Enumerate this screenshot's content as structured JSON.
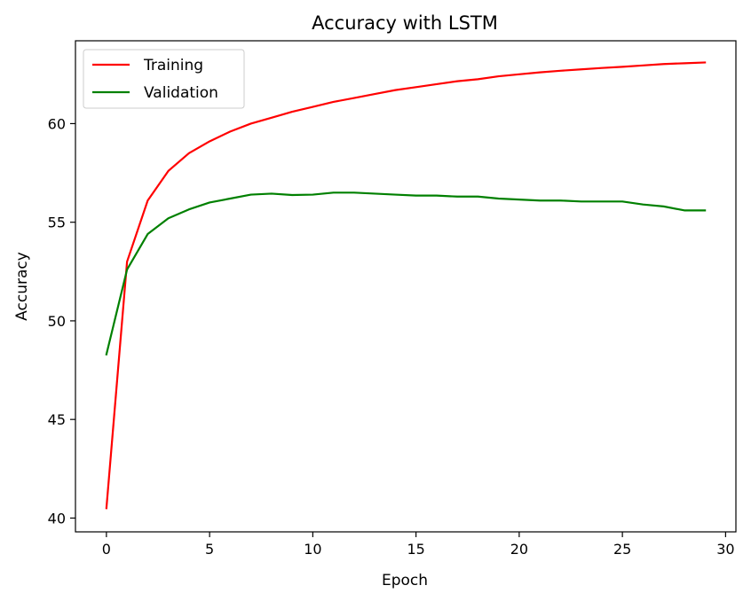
{
  "chart_data": {
    "type": "line",
    "title": "Accuracy with LSTM",
    "xlabel": "Epoch",
    "ylabel": "Accuracy",
    "xlim": [
      -1.5,
      30.5
    ],
    "ylim": [
      39.3,
      64.2
    ],
    "xticks": [
      0,
      5,
      10,
      15,
      20,
      25,
      30
    ],
    "yticks": [
      40,
      45,
      50,
      55,
      60
    ],
    "grid": false,
    "legend_position": "top-left",
    "x": [
      0,
      1,
      2,
      3,
      4,
      5,
      6,
      7,
      8,
      9,
      10,
      11,
      12,
      13,
      14,
      15,
      16,
      17,
      18,
      19,
      20,
      21,
      22,
      23,
      24,
      25,
      26,
      27,
      28,
      29
    ],
    "series": [
      {
        "name": "Training",
        "color": "#ff0000",
        "values": [
          40.5,
          53.0,
          56.1,
          57.6,
          58.5,
          59.1,
          59.6,
          60.0,
          60.3,
          60.6,
          60.85,
          61.1,
          61.3,
          61.5,
          61.7,
          61.85,
          62.0,
          62.15,
          62.25,
          62.4,
          62.5,
          62.6,
          62.68,
          62.75,
          62.82,
          62.88,
          62.95,
          63.02,
          63.06,
          63.1
        ]
      },
      {
        "name": "Validation",
        "color": "#008000",
        "values": [
          48.3,
          52.6,
          54.4,
          55.2,
          55.65,
          56.0,
          56.2,
          56.4,
          56.45,
          56.38,
          56.4,
          56.5,
          56.5,
          56.45,
          56.4,
          56.35,
          56.35,
          56.3,
          56.3,
          56.2,
          56.15,
          56.1,
          56.1,
          56.05,
          56.05,
          56.05,
          55.9,
          55.8,
          55.6,
          55.6
        ]
      }
    ]
  }
}
